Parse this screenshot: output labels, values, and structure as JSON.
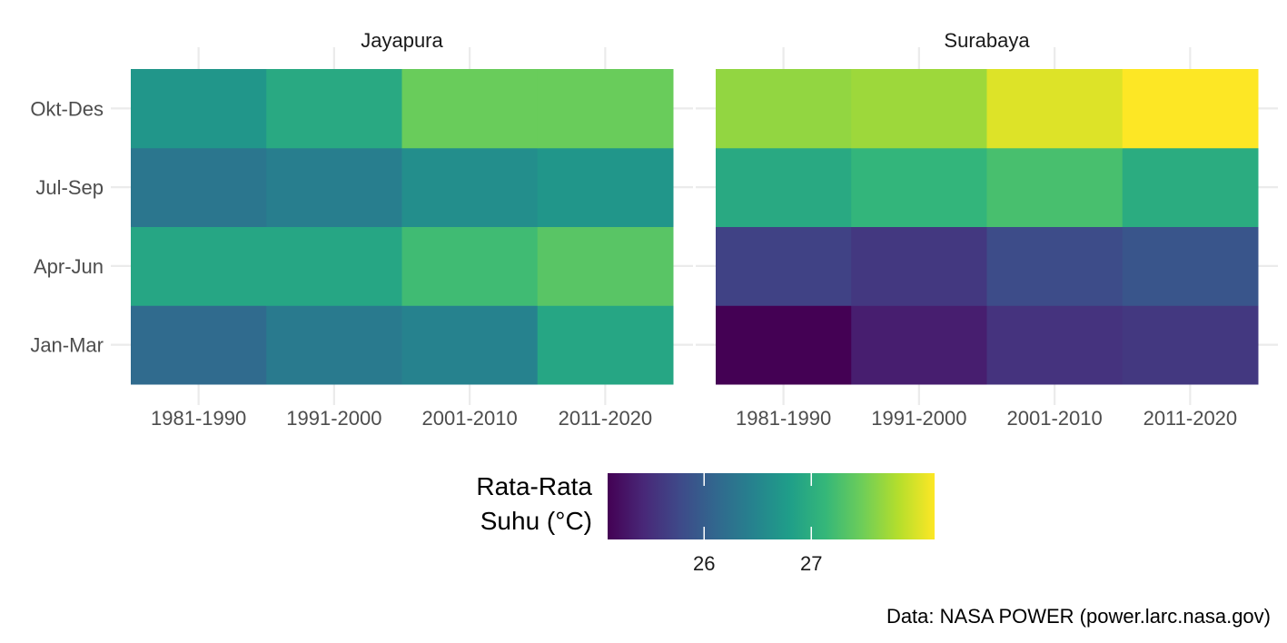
{
  "chart_data": {
    "type": "heatmap",
    "x_categories": [
      "1981-1990",
      "1991-2000",
      "2001-2010",
      "2011-2020"
    ],
    "y_categories": [
      "Jan-Mar",
      "Apr-Jun",
      "Jul-Sep",
      "Okt-Des"
    ],
    "facets": [
      {
        "title": "Jayapura",
        "values": [
          [
            26.15,
            26.35,
            26.45,
            26.9
          ],
          [
            26.9,
            26.9,
            27.2,
            27.35
          ],
          [
            26.3,
            26.4,
            26.6,
            26.7
          ],
          [
            26.7,
            26.95,
            27.45,
            27.45
          ]
        ]
      },
      {
        "title": "Surabaya",
        "values": [
          [
            25.1,
            25.35,
            25.55,
            25.6
          ],
          [
            25.7,
            25.6,
            25.8,
            25.9
          ],
          [
            26.95,
            27.1,
            27.25,
            26.98
          ],
          [
            27.65,
            27.7,
            28.0,
            28.15
          ]
        ]
      }
    ],
    "color_scale": {
      "name": "viridis",
      "range": [
        25.1,
        28.15
      ],
      "colors": [
        "#440154",
        "#482878",
        "#3E4A89",
        "#31688E",
        "#26828E",
        "#1F9E89",
        "#35B779",
        "#6DCD59",
        "#B4DE2C",
        "#FDE725"
      ]
    },
    "legend": {
      "title_lines": [
        "Rata-Rata",
        "Suhu (°C)"
      ],
      "ticks": [
        26,
        27
      ],
      "tick_labels": [
        "26",
        "27"
      ],
      "position": "bottom"
    },
    "caption": "Data: NASA POWER (power.larc.nasa.gov)",
    "grid": true
  }
}
